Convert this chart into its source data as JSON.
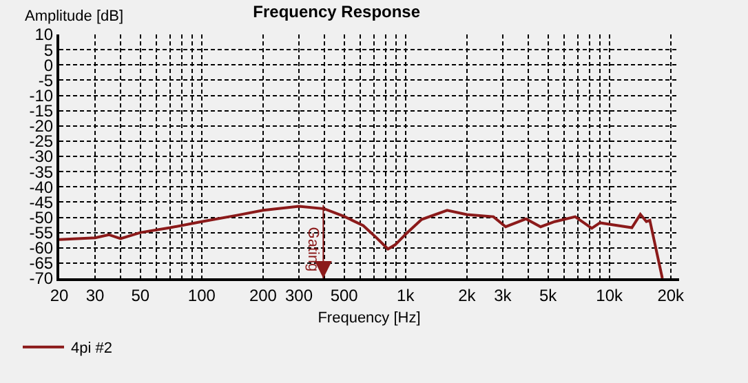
{
  "chart_data": {
    "type": "line",
    "title": "Frequency Response",
    "xlabel": "Frequency [Hz]",
    "ylabel": "Amplitude [dB]",
    "log": "x",
    "grid": true,
    "legend": "bottom left",
    "line_style": "solid",
    "marker": "none",
    "xlim": [
      20,
      22000
    ],
    "ylim": [
      -70,
      10
    ],
    "xticks": [
      20,
      30,
      {
        "value": 40,
        "label": null
      },
      50,
      {
        "value": 60,
        "label": null
      },
      {
        "value": 70,
        "label": null
      },
      {
        "value": 80,
        "label": null
      },
      {
        "value": 90,
        "label": null
      },
      100,
      200,
      300,
      {
        "value": 400,
        "label": null
      },
      500,
      {
        "value": 600,
        "label": null
      },
      {
        "value": 700,
        "label": null
      },
      {
        "value": 800,
        "label": null
      },
      {
        "value": 900,
        "label": null
      },
      {
        "value": 1000,
        "label": "1k"
      },
      {
        "value": 2000,
        "label": "2k"
      },
      {
        "value": 3000,
        "label": "3k"
      },
      {
        "value": 4000,
        "label": null
      },
      {
        "value": 5000,
        "label": "5k"
      },
      {
        "value": 6000,
        "label": null
      },
      {
        "value": 7000,
        "label": null
      },
      {
        "value": 8000,
        "label": null
      },
      {
        "value": 9000,
        "label": null
      },
      {
        "value": 10000,
        "label": "10k"
      },
      {
        "value": 20000,
        "label": "20k"
      }
    ],
    "yticks": [
      10,
      5,
      0,
      -5,
      -10,
      -15,
      -20,
      -25,
      -30,
      -35,
      -40,
      -45,
      -50,
      -55,
      -60,
      -65,
      -70
    ],
    "ref_lines": [
      {
        "axis": "x",
        "value": 395,
        "label": "Gating",
        "color": "#8b1a1a"
      }
    ],
    "x": [
      20,
      30,
      35,
      40,
      50,
      70,
      100,
      150,
      200,
      300,
      400,
      500,
      620,
      720,
      820,
      890,
      1010,
      1200,
      1600,
      2000,
      2700,
      3100,
      3900,
      4600,
      5400,
      6800,
      8200,
      9000,
      10100,
      12900,
      14200,
      15200,
      15800,
      18200
    ],
    "series": [
      {
        "name": "4pi #2",
        "color": "#8b1a1a",
        "values": [
          -57.3,
          -56.7,
          -55.7,
          -57,
          -55,
          -53.4,
          -51.4,
          -49.3,
          -47.7,
          -46.4,
          -47.2,
          -49.7,
          -52.7,
          -56.7,
          -60.4,
          -59,
          -55.3,
          -50.7,
          -47.7,
          -49.1,
          -49.8,
          -53.1,
          -50.5,
          -53.1,
          -51.4,
          -49.8,
          -53.6,
          -51.8,
          -52.3,
          -53.4,
          -49,
          -51.4,
          -51,
          -70
        ]
      }
    ]
  }
}
